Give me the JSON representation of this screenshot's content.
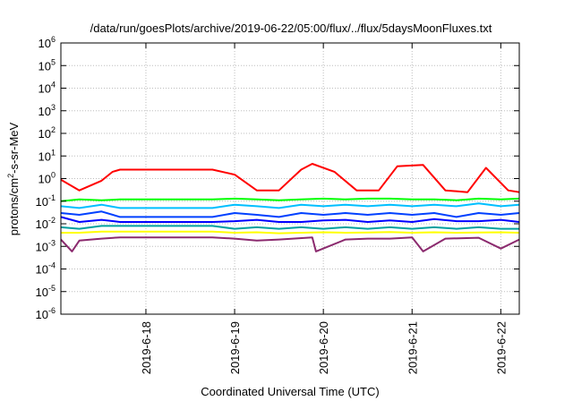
{
  "chart_data": {
    "type": "line",
    "title": "/data/run/goesPlots/archive/2019-06-22/05:00/flux/../flux/5daysMoonFluxes.txt",
    "xlabel": "Coordinated Universal Time (UTC)",
    "ylabel": "protons/cm2-s-sr-MeV",
    "ylabel_parts": {
      "pre": "protons/cm",
      "sup": "2",
      "post": "-s-sr-MeV"
    },
    "y_scale": "log",
    "ylim": [
      1e-06,
      1000000.0
    ],
    "y_tick_labels": [
      {
        "base": "10",
        "exp": "-6",
        "value": 1e-06
      },
      {
        "base": "10",
        "exp": "-5",
        "value": 1e-05
      },
      {
        "base": "10",
        "exp": "-4",
        "value": 0.0001
      },
      {
        "base": "10",
        "exp": "-3",
        "value": 0.001
      },
      {
        "base": "10",
        "exp": "-2",
        "value": 0.01
      },
      {
        "base": "10",
        "exp": "-1",
        "value": 0.1
      },
      {
        "base": "10",
        "exp": "0",
        "value": 1
      },
      {
        "base": "10",
        "exp": "1",
        "value": 10.0
      },
      {
        "base": "10",
        "exp": "2",
        "value": 100.0
      },
      {
        "base": "10",
        "exp": "3",
        "value": 1000.0
      },
      {
        "base": "10",
        "exp": "4",
        "value": 10000.0
      },
      {
        "base": "10",
        "exp": "5",
        "value": 100000.0
      },
      {
        "base": "10",
        "exp": "6",
        "value": 1000000.0
      }
    ],
    "x_ticks": [
      "2019-6-18",
      "2019-6-19",
      "2019-6-20",
      "2019-6-21",
      "2019-6-22"
    ],
    "xlim": [
      "2019-06-17T01:00",
      "2019-06-22T05:00"
    ],
    "grid": true,
    "series": [
      {
        "color": "#ff0000",
        "x": [
          "2019-06-17T01:00",
          "2019-06-17T06:00",
          "2019-06-17T12:00",
          "2019-06-17T15:00",
          "2019-06-17T17:00",
          "2019-06-18T00:00",
          "2019-06-18T12:00",
          "2019-06-18T18:00",
          "2019-06-19T00:00",
          "2019-06-19T06:00",
          "2019-06-19T12:00",
          "2019-06-19T18:00",
          "2019-06-19T21:00",
          "2019-06-20T03:00",
          "2019-06-20T09:00",
          "2019-06-20T15:00",
          "2019-06-20T20:00",
          "2019-06-21T03:00",
          "2019-06-21T09:00",
          "2019-06-21T15:00",
          "2019-06-21T20:00",
          "2019-06-22T02:00",
          "2019-06-22T05:00"
        ],
        "values": [
          0.9,
          0.3,
          0.8,
          2.0,
          2.5,
          2.5,
          2.5,
          2.5,
          1.5,
          0.3,
          0.3,
          2.5,
          4.5,
          2.0,
          0.3,
          0.3,
          3.5,
          4.0,
          0.3,
          0.25,
          3.0,
          0.3,
          0.25
        ]
      },
      {
        "color": "#00ff00",
        "x": [
          "2019-06-17T01:00",
          "2019-06-17T06:00",
          "2019-06-17T12:00",
          "2019-06-17T17:00",
          "2019-06-18T00:00",
          "2019-06-18T12:00",
          "2019-06-18T18:00",
          "2019-06-19T00:00",
          "2019-06-19T06:00",
          "2019-06-19T12:00",
          "2019-06-19T18:00",
          "2019-06-20T00:00",
          "2019-06-20T06:00",
          "2019-06-20T12:00",
          "2019-06-20T18:00",
          "2019-06-21T00:00",
          "2019-06-21T06:00",
          "2019-06-21T12:00",
          "2019-06-21T18:00",
          "2019-06-22T00:00",
          "2019-06-22T05:00"
        ],
        "values": [
          0.1,
          0.12,
          0.11,
          0.12,
          0.12,
          0.12,
          0.12,
          0.13,
          0.12,
          0.11,
          0.12,
          0.13,
          0.12,
          0.13,
          0.13,
          0.12,
          0.12,
          0.11,
          0.13,
          0.12,
          0.13
        ]
      },
      {
        "color": "#00bfff",
        "x": [
          "2019-06-17T01:00",
          "2019-06-17T06:00",
          "2019-06-17T12:00",
          "2019-06-17T17:00",
          "2019-06-18T00:00",
          "2019-06-18T12:00",
          "2019-06-18T18:00",
          "2019-06-19T00:00",
          "2019-06-19T06:00",
          "2019-06-19T12:00",
          "2019-06-19T18:00",
          "2019-06-20T00:00",
          "2019-06-20T06:00",
          "2019-06-20T12:00",
          "2019-06-20T18:00",
          "2019-06-21T00:00",
          "2019-06-21T06:00",
          "2019-06-21T12:00",
          "2019-06-21T18:00",
          "2019-06-22T00:00",
          "2019-06-22T05:00"
        ],
        "values": [
          0.06,
          0.05,
          0.07,
          0.05,
          0.05,
          0.05,
          0.05,
          0.07,
          0.06,
          0.05,
          0.07,
          0.06,
          0.07,
          0.06,
          0.07,
          0.06,
          0.07,
          0.06,
          0.08,
          0.06,
          0.07
        ]
      },
      {
        "color": "#0040ff",
        "x": [
          "2019-06-17T01:00",
          "2019-06-17T06:00",
          "2019-06-17T12:00",
          "2019-06-17T17:00",
          "2019-06-18T00:00",
          "2019-06-18T12:00",
          "2019-06-18T18:00",
          "2019-06-19T00:00",
          "2019-06-19T06:00",
          "2019-06-19T12:00",
          "2019-06-19T18:00",
          "2019-06-20T00:00",
          "2019-06-20T06:00",
          "2019-06-20T12:00",
          "2019-06-20T18:00",
          "2019-06-21T00:00",
          "2019-06-21T06:00",
          "2019-06-21T12:00",
          "2019-06-21T18:00",
          "2019-06-22T00:00",
          "2019-06-22T05:00"
        ],
        "values": [
          0.03,
          0.025,
          0.035,
          0.02,
          0.02,
          0.02,
          0.02,
          0.03,
          0.025,
          0.02,
          0.03,
          0.025,
          0.03,
          0.025,
          0.03,
          0.025,
          0.03,
          0.02,
          0.03,
          0.025,
          0.03
        ]
      },
      {
        "color": "#0000ff",
        "x": [
          "2019-06-17T01:00",
          "2019-06-17T06:00",
          "2019-06-17T12:00",
          "2019-06-17T17:00",
          "2019-06-18T00:00",
          "2019-06-18T12:00",
          "2019-06-18T18:00",
          "2019-06-19T00:00",
          "2019-06-19T06:00",
          "2019-06-19T12:00",
          "2019-06-19T18:00",
          "2019-06-20T00:00",
          "2019-06-20T06:00",
          "2019-06-20T12:00",
          "2019-06-20T18:00",
          "2019-06-21T00:00",
          "2019-06-21T06:00",
          "2019-06-21T12:00",
          "2019-06-21T18:00",
          "2019-06-22T00:00",
          "2019-06-22T05:00"
        ],
        "values": [
          0.02,
          0.012,
          0.015,
          0.012,
          0.012,
          0.012,
          0.012,
          0.013,
          0.015,
          0.012,
          0.012,
          0.014,
          0.015,
          0.012,
          0.014,
          0.012,
          0.016,
          0.013,
          0.013,
          0.015,
          0.012
        ]
      },
      {
        "color": "#00a0a0",
        "x": [
          "2019-06-17T01:00",
          "2019-06-17T06:00",
          "2019-06-17T12:00",
          "2019-06-17T17:00",
          "2019-06-18T00:00",
          "2019-06-18T12:00",
          "2019-06-18T18:00",
          "2019-06-19T00:00",
          "2019-06-19T06:00",
          "2019-06-19T12:00",
          "2019-06-19T18:00",
          "2019-06-20T00:00",
          "2019-06-20T06:00",
          "2019-06-20T12:00",
          "2019-06-20T18:00",
          "2019-06-21T00:00",
          "2019-06-21T06:00",
          "2019-06-21T12:00",
          "2019-06-21T18:00",
          "2019-06-22T00:00",
          "2019-06-22T05:00"
        ],
        "values": [
          0.007,
          0.006,
          0.008,
          0.008,
          0.008,
          0.008,
          0.008,
          0.006,
          0.007,
          0.006,
          0.007,
          0.006,
          0.007,
          0.006,
          0.007,
          0.006,
          0.007,
          0.006,
          0.007,
          0.006,
          0.006
        ]
      },
      {
        "color": "#ffff00",
        "x": [
          "2019-06-17T01:00",
          "2019-06-17T06:00",
          "2019-06-17T12:00",
          "2019-06-17T17:00",
          "2019-06-18T00:00",
          "2019-06-18T12:00",
          "2019-06-18T18:00",
          "2019-06-19T00:00",
          "2019-06-19T06:00",
          "2019-06-19T12:00",
          "2019-06-19T18:00",
          "2019-06-20T00:00",
          "2019-06-20T06:00",
          "2019-06-20T12:00",
          "2019-06-20T18:00",
          "2019-06-21T00:00",
          "2019-06-21T06:00",
          "2019-06-21T12:00",
          "2019-06-21T18:00",
          "2019-06-22T00:00",
          "2019-06-22T05:00"
        ],
        "values": [
          0.004,
          0.004,
          0.0045,
          0.0045,
          0.0045,
          0.0045,
          0.0045,
          0.004,
          0.0042,
          0.0038,
          0.004,
          0.0042,
          0.004,
          0.0041,
          0.0043,
          0.004,
          0.0042,
          0.004,
          0.0041,
          0.0042,
          0.004
        ]
      },
      {
        "color": "#8b2a6e",
        "x": [
          "2019-06-17T01:00",
          "2019-06-17T04:00",
          "2019-06-17T06:00",
          "2019-06-17T12:00",
          "2019-06-17T17:00",
          "2019-06-18T00:00",
          "2019-06-18T12:00",
          "2019-06-18T18:00",
          "2019-06-19T00:00",
          "2019-06-19T06:00",
          "2019-06-19T12:00",
          "2019-06-19T21:00",
          "2019-06-19T22:00",
          "2019-06-20T06:00",
          "2019-06-20T12:00",
          "2019-06-20T18:00",
          "2019-06-21T00:00",
          "2019-06-21T03:00",
          "2019-06-21T09:00",
          "2019-06-21T18:00",
          "2019-06-22T00:00",
          "2019-06-22T05:00"
        ],
        "values": [
          0.002,
          0.0006,
          0.0018,
          0.0022,
          0.0025,
          0.0025,
          0.0025,
          0.0025,
          0.0022,
          0.0018,
          0.002,
          0.0025,
          0.0006,
          0.002,
          0.0022,
          0.0022,
          0.0025,
          0.0006,
          0.0022,
          0.0024,
          0.0008,
          0.002
        ]
      }
    ]
  }
}
